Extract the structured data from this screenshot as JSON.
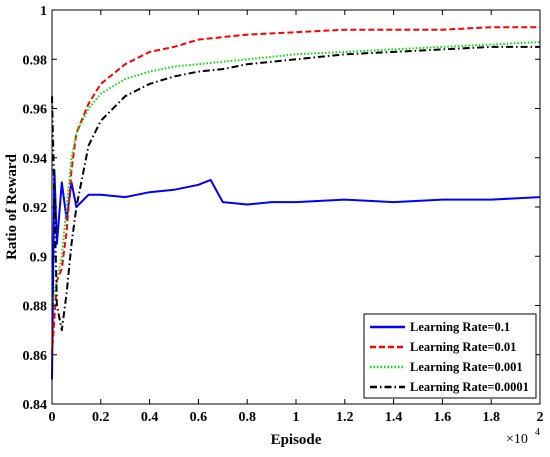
{
  "chart_data": {
    "type": "line",
    "title": "",
    "xlabel": "Episode",
    "ylabel": "Ratio of Reward",
    "x_multiplier": {
      "base": "×10",
      "exponent": "4"
    },
    "xlim": [
      0,
      2
    ],
    "ylim": [
      0.84,
      1
    ],
    "x_ticks": [
      0,
      0.2,
      0.4,
      0.6,
      0.8,
      1,
      1.2,
      1.4,
      1.6,
      1.8,
      2
    ],
    "x_tick_labels": [
      "0",
      "0.2",
      "0.4",
      "0.6",
      "0.8",
      "1",
      "1.2",
      "1.4",
      "1.6",
      "1.8",
      "2"
    ],
    "y_ticks": [
      0.84,
      0.86,
      0.88,
      0.9,
      0.92,
      0.94,
      0.96,
      0.98,
      1
    ],
    "y_tick_labels": [
      "0.84",
      "0.86",
      "0.88",
      "0.9",
      "0.92",
      "0.94",
      "0.96",
      "0.98",
      "1"
    ],
    "grid": false,
    "legend_position": "bottom-right",
    "series": [
      {
        "name": "Learning Rate=0.1",
        "color": "#0000ff",
        "style": "solid",
        "x": [
          0,
          0.01,
          0.02,
          0.04,
          0.06,
          0.08,
          0.1,
          0.15,
          0.2,
          0.3,
          0.4,
          0.5,
          0.6,
          0.65,
          0.7,
          0.8,
          0.9,
          1.0,
          1.2,
          1.4,
          1.6,
          1.8,
          2.0
        ],
        "y": [
          0.85,
          0.935,
          0.905,
          0.93,
          0.915,
          0.93,
          0.92,
          0.925,
          0.925,
          0.924,
          0.926,
          0.927,
          0.929,
          0.931,
          0.922,
          0.921,
          0.922,
          0.922,
          0.923,
          0.922,
          0.923,
          0.923,
          0.924
        ]
      },
      {
        "name": "Learning Rate=0.01",
        "color": "#ff0000",
        "style": "dashed",
        "x": [
          0,
          0.02,
          0.04,
          0.06,
          0.08,
          0.1,
          0.15,
          0.2,
          0.3,
          0.4,
          0.5,
          0.6,
          0.7,
          0.8,
          1.0,
          1.2,
          1.4,
          1.6,
          1.8,
          2.0
        ],
        "y": [
          0.86,
          0.89,
          0.895,
          0.91,
          0.935,
          0.95,
          0.962,
          0.97,
          0.978,
          0.983,
          0.985,
          0.988,
          0.989,
          0.99,
          0.991,
          0.992,
          0.992,
          0.992,
          0.993,
          0.993
        ]
      },
      {
        "name": "Learning Rate=0.001",
        "color": "#00dd00",
        "style": "dotted",
        "x": [
          0,
          0.02,
          0.04,
          0.06,
          0.08,
          0.1,
          0.15,
          0.2,
          0.3,
          0.4,
          0.5,
          0.6,
          0.7,
          0.8,
          1.0,
          1.2,
          1.4,
          1.6,
          1.8,
          2.0
        ],
        "y": [
          0.88,
          0.89,
          0.9,
          0.92,
          0.94,
          0.95,
          0.96,
          0.966,
          0.972,
          0.975,
          0.977,
          0.978,
          0.979,
          0.98,
          0.982,
          0.983,
          0.984,
          0.985,
          0.986,
          0.987
        ]
      },
      {
        "name": "Learning Rate=0.0001",
        "color": "#000000",
        "style": "dashdot",
        "x": [
          0,
          0.02,
          0.04,
          0.06,
          0.08,
          0.1,
          0.15,
          0.2,
          0.3,
          0.4,
          0.5,
          0.6,
          0.7,
          0.8,
          1.0,
          1.2,
          1.4,
          1.6,
          1.8,
          2.0
        ],
        "y": [
          0.965,
          0.88,
          0.87,
          0.885,
          0.905,
          0.92,
          0.945,
          0.955,
          0.965,
          0.97,
          0.973,
          0.975,
          0.976,
          0.978,
          0.98,
          0.982,
          0.983,
          0.984,
          0.985,
          0.985
        ]
      }
    ]
  }
}
